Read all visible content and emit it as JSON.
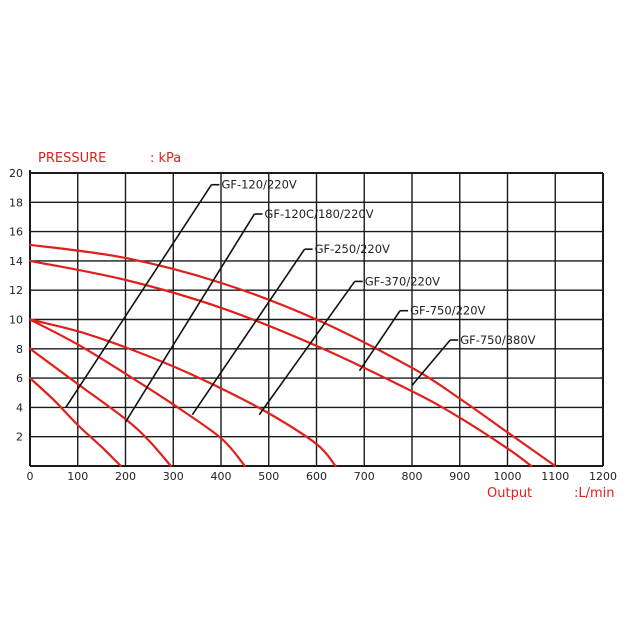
{
  "chart_data": {
    "type": "line",
    "title": "",
    "ylabel": "PRESSURE",
    "ylabel_unit": ": kPa",
    "xlabel": "Output",
    "xlabel_unit": ":L/min",
    "xlim": [
      0,
      1200
    ],
    "ylim": [
      0,
      20
    ],
    "x_ticks": [
      0,
      100,
      200,
      300,
      400,
      500,
      600,
      700,
      800,
      900,
      1000,
      1100,
      1200
    ],
    "y_ticks": [
      2,
      4,
      6,
      8,
      10,
      12,
      14,
      16,
      18,
      20
    ],
    "grid": true,
    "curve_color": "#e0201c",
    "leader_color": "#111111",
    "series": [
      {
        "name": "GF-120/220V",
        "points": [
          [
            0,
            6
          ],
          [
            50,
            4.5
          ],
          [
            100,
            2.8
          ],
          [
            150,
            1.3
          ],
          [
            190,
            0
          ]
        ]
      },
      {
        "name": "GF-120C/180/220V",
        "points": [
          [
            0,
            8
          ],
          [
            100,
            5.6
          ],
          [
            200,
            3.2
          ],
          [
            250,
            1.7
          ],
          [
            295,
            0
          ]
        ]
      },
      {
        "name": "GF-250/220V",
        "points": [
          [
            0,
            10
          ],
          [
            100,
            8.3
          ],
          [
            200,
            6.3
          ],
          [
            300,
            4.2
          ],
          [
            400,
            1.9
          ],
          [
            450,
            0
          ]
        ]
      },
      {
        "name": "GF-370/220V",
        "points": [
          [
            0,
            10
          ],
          [
            100,
            9.2
          ],
          [
            200,
            8.1
          ],
          [
            300,
            6.8
          ],
          [
            400,
            5.3
          ],
          [
            500,
            3.6
          ],
          [
            600,
            1.5
          ],
          [
            640,
            0
          ]
        ]
      },
      {
        "name": "GF-750/220V",
        "points": [
          [
            0,
            14
          ],
          [
            200,
            12.7
          ],
          [
            400,
            10.8
          ],
          [
            600,
            8.2
          ],
          [
            800,
            5.1
          ],
          [
            900,
            3.3
          ],
          [
            1000,
            1.2
          ],
          [
            1050,
            0
          ]
        ]
      },
      {
        "name": "GF-750/380V",
        "points": [
          [
            0,
            15.1
          ],
          [
            200,
            14.2
          ],
          [
            400,
            12.5
          ],
          [
            600,
            10.0
          ],
          [
            800,
            6.7
          ],
          [
            900,
            4.6
          ],
          [
            1000,
            2.3
          ],
          [
            1100,
            0
          ]
        ]
      }
    ],
    "annotation_leaders": [
      {
        "label": "GF-120/220V",
        "from": [
          75,
          4
        ],
        "to": [
          380,
          19.2
        ]
      },
      {
        "label": "GF-120C/180/220V",
        "from": [
          200,
          3
        ],
        "to": [
          470,
          17.2
        ]
      },
      {
        "label": "GF-250/220V",
        "from": [
          340,
          3.5
        ],
        "to": [
          575,
          14.8
        ]
      },
      {
        "label": "GF-370/220V",
        "from": [
          480,
          3.5
        ],
        "to": [
          680,
          12.6
        ]
      },
      {
        "label": "GF-750/220V",
        "from": [
          690,
          6.5
        ],
        "to": [
          775,
          10.6
        ]
      },
      {
        "label": "GF-750/380V",
        "from": [
          800,
          5.5
        ],
        "to": [
          880,
          8.6
        ]
      }
    ]
  }
}
